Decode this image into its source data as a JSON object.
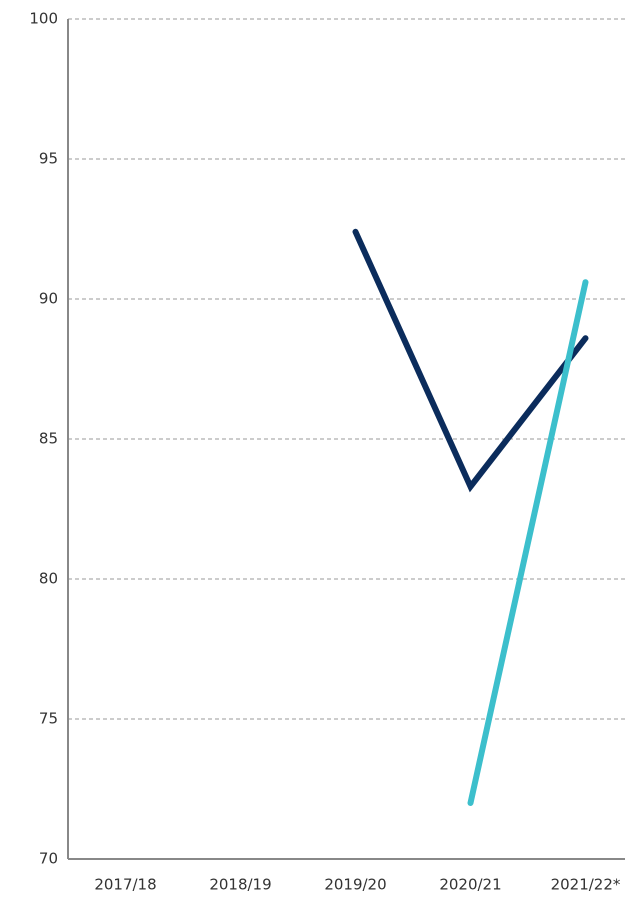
{
  "chart_data": {
    "type": "line",
    "categories": [
      "2017/18",
      "2018/19",
      "2019/20",
      "2020/21",
      "2021/22*"
    ],
    "series": [
      {
        "color": "#0b2c5c",
        "values": [
          null,
          null,
          92.4,
          83.3,
          88.6
        ]
      },
      {
        "color": "#3cbfcc",
        "values": [
          null,
          null,
          null,
          72.0,
          90.6
        ]
      }
    ],
    "ylim": [
      70,
      100
    ],
    "yticks": [
      70,
      75,
      80,
      85,
      90,
      95,
      100
    ],
    "grid": true
  }
}
